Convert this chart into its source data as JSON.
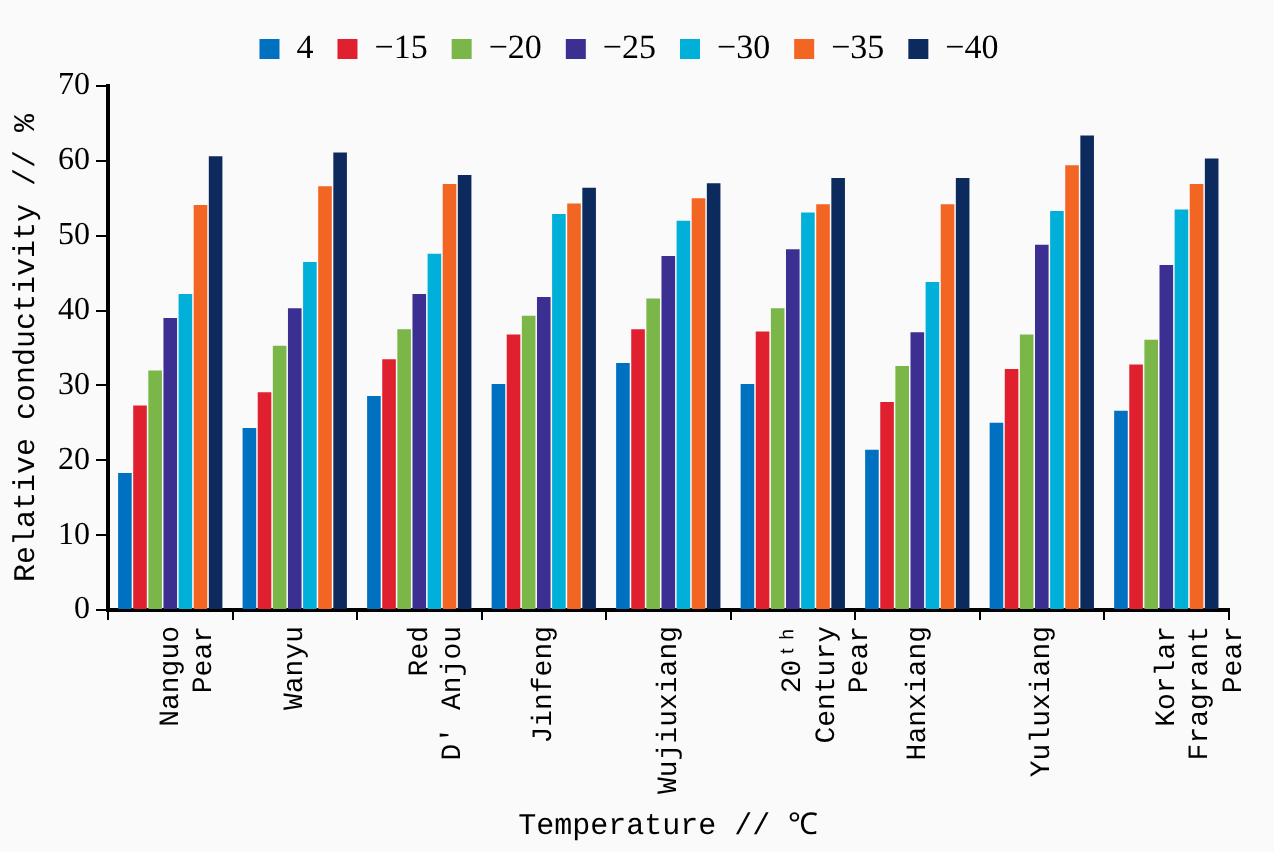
{
  "chart_data": {
    "type": "bar",
    "xlabel": "Temperature // ℃",
    "ylabel": "Relative conductivity // %",
    "categories": [
      "Nanguo\nPear",
      "Wanyu",
      "Red\nD' Anjou",
      "Jinfeng",
      "Wujiuxiang",
      "20ᵗʰ\nCentury\nPear",
      "Hanxiang",
      "Yuluxiang",
      "Korlar\nFragrant\nPear"
    ],
    "series": [
      {
        "name": "4",
        "color": "#0070c0",
        "values": [
          18.3,
          24.3,
          28.6,
          30.2,
          33,
          30.2,
          21.4,
          25,
          26.6
        ]
      },
      {
        "name": "−15",
        "color": "#e0202e",
        "values": [
          27.3,
          29.1,
          33.5,
          36.8,
          37.5,
          37.2,
          27.8,
          32.2,
          32.8
        ]
      },
      {
        "name": "−20",
        "color": "#7ab648",
        "values": [
          32,
          35.3,
          37.5,
          39.3,
          41.6,
          40.3,
          32.6,
          36.8,
          36.1
        ]
      },
      {
        "name": "−25",
        "color": "#3b3092",
        "values": [
          39,
          40.3,
          42.2,
          41.8,
          47.3,
          48.2,
          37.1,
          48.8,
          46.1
        ]
      },
      {
        "name": "−30",
        "color": "#00b0d8",
        "values": [
          42.2,
          46.5,
          47.6,
          52.9,
          52,
          53.1,
          43.8,
          53.3,
          53.5
        ]
      },
      {
        "name": "−35",
        "color": "#f26522",
        "values": [
          54.1,
          56.6,
          56.9,
          54.3,
          55,
          54.2,
          54.2,
          59.4,
          56.9
        ]
      },
      {
        "name": "−40",
        "color": "#0c2a5e",
        "values": [
          60.6,
          61.1,
          58.1,
          56.4,
          57,
          57.7,
          57.7,
          63.4,
          60.3
        ]
      }
    ],
    "ylim": [
      0,
      70
    ],
    "yticks": [
      0,
      10,
      20,
      30,
      40,
      50,
      60,
      70
    ],
    "legend": "top",
    "grid": false
  }
}
